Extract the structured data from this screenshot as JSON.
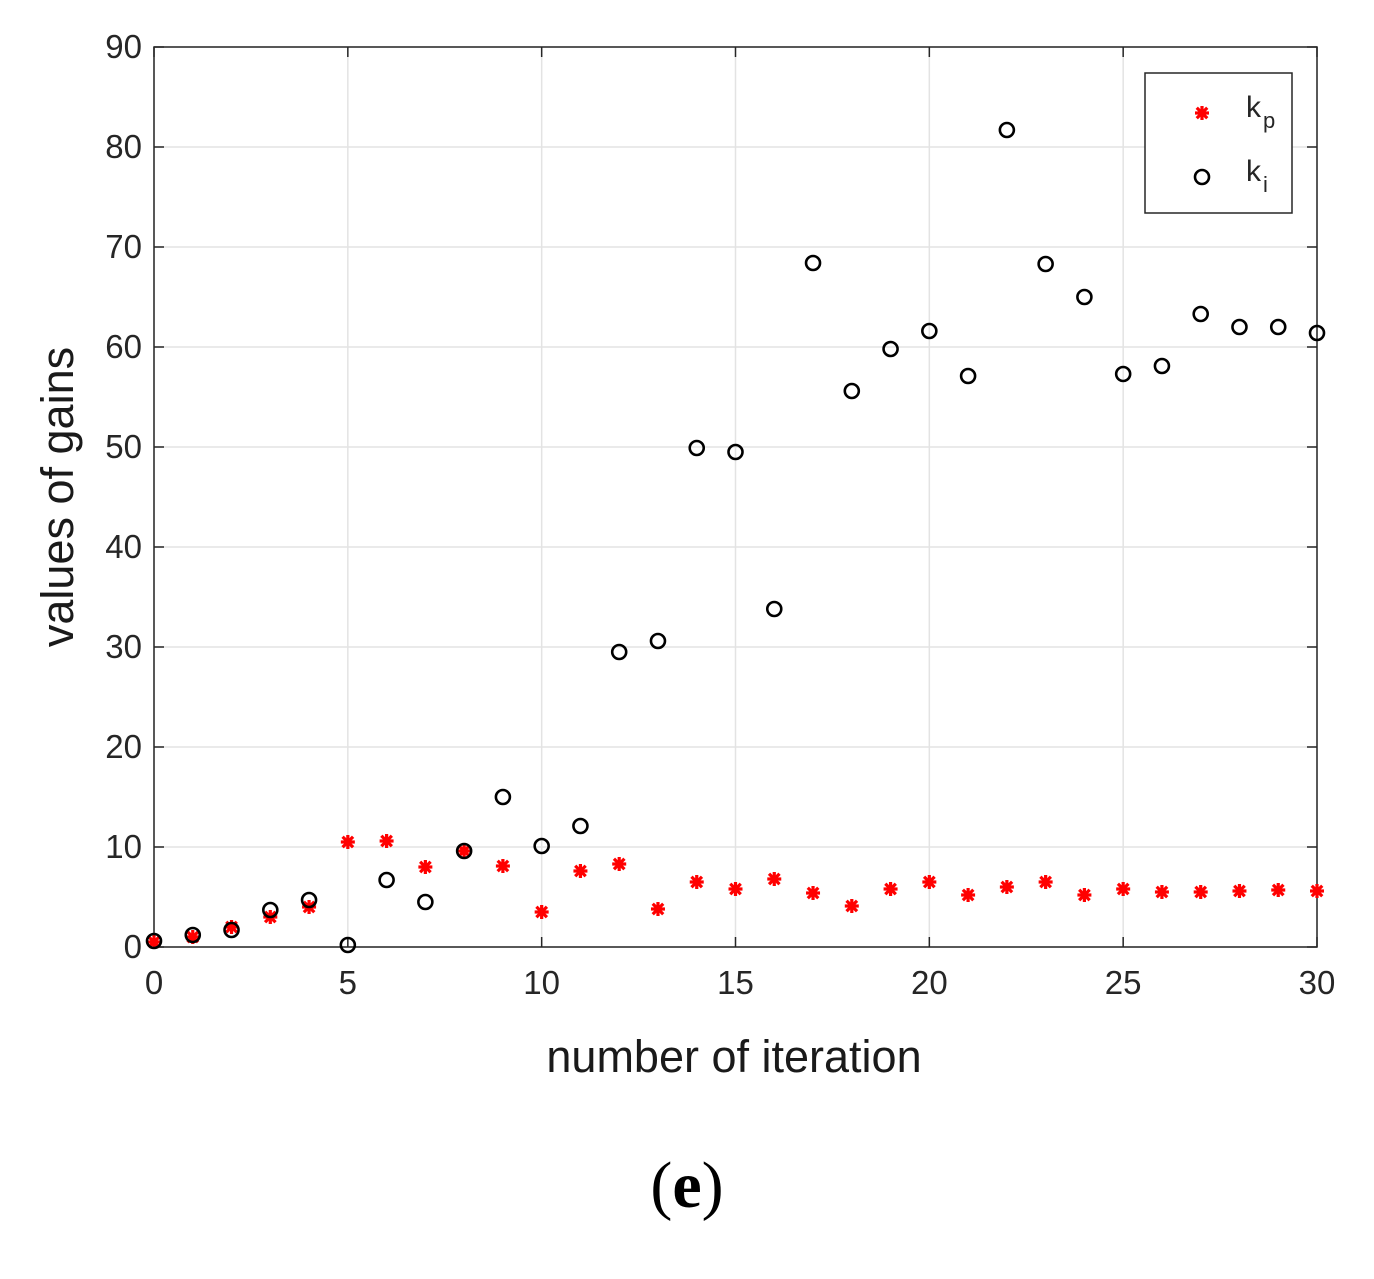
{
  "chart_data": {
    "type": "scatter",
    "title": "",
    "xlabel": "number of iteration",
    "ylabel": "values of gains",
    "xlim": [
      0,
      30
    ],
    "ylim": [
      0,
      90
    ],
    "xticks": [
      0,
      5,
      10,
      15,
      20,
      25,
      30
    ],
    "yticks": [
      0,
      10,
      20,
      30,
      40,
      50,
      60,
      70,
      80,
      90
    ],
    "grid": true,
    "legend_position": "top-right",
    "series": [
      {
        "name": "kp",
        "legend_main": "k",
        "legend_sub": "p",
        "marker": "star",
        "color": "#ff0000",
        "x": [
          0,
          1,
          2,
          3,
          4,
          5,
          6,
          7,
          8,
          9,
          10,
          11,
          12,
          13,
          14,
          15,
          16,
          17,
          18,
          19,
          20,
          21,
          22,
          23,
          24,
          25,
          26,
          27,
          28,
          29,
          30
        ],
        "y": [
          0.5,
          1.0,
          2.0,
          3.0,
          4.0,
          10.5,
          10.6,
          8.0,
          9.6,
          8.1,
          3.5,
          7.6,
          8.3,
          3.8,
          6.5,
          5.8,
          6.8,
          5.4,
          4.1,
          5.8,
          6.5,
          5.2,
          6.0,
          6.5,
          5.2,
          5.8,
          5.5,
          5.5,
          5.6,
          5.7,
          5.6
        ]
      },
      {
        "name": "ki",
        "legend_main": "k",
        "legend_sub": "i",
        "marker": "circle",
        "color": "#000000",
        "x": [
          0,
          1,
          2,
          3,
          4,
          5,
          6,
          7,
          8,
          9,
          10,
          11,
          12,
          13,
          14,
          15,
          16,
          17,
          18,
          19,
          20,
          21,
          22,
          23,
          24,
          25,
          26,
          27,
          28,
          29,
          30
        ],
        "y": [
          0.6,
          1.2,
          1.7,
          3.7,
          4.7,
          0.2,
          6.7,
          4.5,
          9.6,
          15.0,
          10.1,
          12.1,
          29.5,
          30.6,
          49.9,
          49.5,
          33.8,
          68.4,
          55.6,
          59.8,
          61.6,
          57.1,
          81.7,
          68.3,
          65.0,
          57.3,
          58.1,
          63.3,
          62.0,
          62.0,
          61.4
        ]
      }
    ]
  },
  "panel_label": "(e)",
  "panel_open": "(",
  "panel_letter": "e",
  "panel_close": ")"
}
